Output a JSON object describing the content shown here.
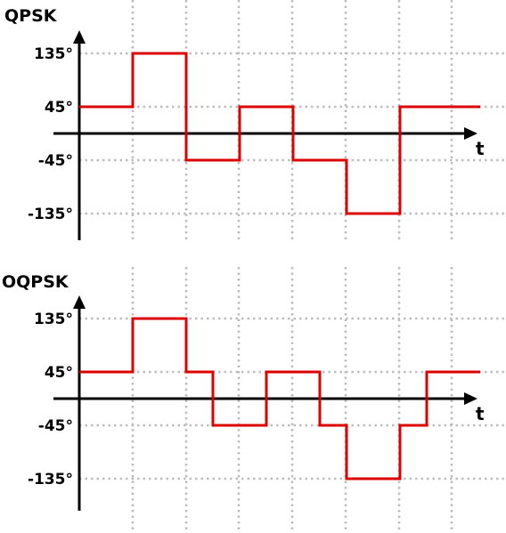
{
  "colors": {
    "signal": "#dd0000",
    "grid": "#bdbdbd",
    "axis": "#000000"
  },
  "chart_data": [
    {
      "type": "line",
      "step": true,
      "title": "QPSK",
      "xlabel": "t",
      "ylabel": "",
      "yticks": [
        {
          "value": 135,
          "label": "135°"
        },
        {
          "value": 45,
          "label": "45°"
        },
        {
          "value": -45,
          "label": "-45°"
        },
        {
          "value": -135,
          "label": "-135°"
        }
      ],
      "ylim": [
        -175,
        180
      ],
      "xlim": [
        0,
        7.5
      ],
      "grid": true,
      "x": [
        0,
        1,
        2,
        3,
        4,
        5,
        6,
        7
      ],
      "values": [
        45,
        135,
        -45,
        45,
        -45,
        -135,
        45,
        45
      ]
    },
    {
      "type": "line",
      "step": true,
      "title": "OQPSK",
      "xlabel": "t",
      "ylabel": "",
      "yticks": [
        {
          "value": 135,
          "label": "135°"
        },
        {
          "value": 45,
          "label": "45°"
        },
        {
          "value": -45,
          "label": "-45°"
        },
        {
          "value": -135,
          "label": "-135°"
        }
      ],
      "ylim": [
        -175,
        180
      ],
      "xlim": [
        0,
        7.5
      ],
      "grid": true,
      "x": [
        0,
        1,
        2,
        2.5,
        3.5,
        4.5,
        5,
        6,
        6.5,
        7
      ],
      "values": [
        45,
        135,
        45,
        -45,
        45,
        -45,
        -135,
        -45,
        45,
        45
      ]
    }
  ]
}
